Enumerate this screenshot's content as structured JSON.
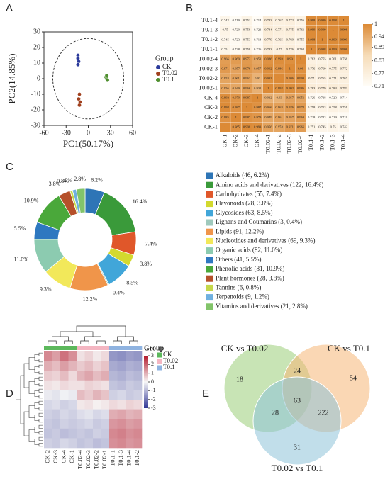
{
  "chart_data": [
    {
      "type": "scatter",
      "panel": "A",
      "xlabel": "PC1(50.17%)",
      "ylabel": "PC2(14.85%)",
      "xlim": [
        -60,
        60
      ],
      "ylim": [
        -30,
        30
      ],
      "xticks": [
        -60,
        -30,
        0,
        30,
        60
      ],
      "yticks": [
        -30,
        -20,
        -10,
        0,
        10,
        20,
        30
      ],
      "legend_title": "Group",
      "series": [
        {
          "name": "CK",
          "color": "#2b3a9b",
          "x": [
            -14,
            -14,
            -13,
            -14
          ],
          "y": [
            15,
            13,
            11,
            9
          ]
        },
        {
          "name": "T0.02",
          "color": "#a0401e",
          "x": [
            -12,
            -13,
            -11,
            -12
          ],
          "y": [
            -10,
            -13,
            -15,
            -17
          ]
        },
        {
          "name": "T0.1",
          "color": "#4f8f2f",
          "x": [
            24,
            25,
            26,
            25
          ],
          "y": [
            1,
            0,
            -1,
            2
          ]
        }
      ]
    },
    {
      "type": "heatmap",
      "panel": "B",
      "rows": [
        "T0.1-4",
        "T0.1-3",
        "T0.1-2",
        "T0.1-1",
        "T0.02-4",
        "T0.02-3",
        "T0.02-2",
        "T0.02-1",
        "CK-4",
        "CK-3",
        "CK-2",
        "CK-1"
      ],
      "columns": [
        "CK-1",
        "CK-2",
        "CK-3",
        "CK-4",
        "T0.02-1",
        "T0.02-2",
        "T0.02-3",
        "T0.02-4",
        "T0.1-1",
        "T0.1-2",
        "T0.1-3",
        "T0.1-4"
      ],
      "values": [
        [
          0.742,
          0.719,
          0.751,
          0.714,
          0.783,
          0.767,
          0.772,
          0.756,
          0.998,
          0.999,
          0.998,
          1
        ],
        [
          0.75,
          0.729,
          0.758,
          0.723,
          0.784,
          0.771,
          0.775,
          0.761,
          0.999,
          0.999,
          1,
          0.998
        ],
        [
          0.745,
          0.723,
          0.753,
          0.718,
          0.779,
          0.765,
          0.769,
          0.755,
          0.998,
          1,
          0.999,
          0.999
        ],
        [
          0.751,
          0.728,
          0.758,
          0.726,
          0.783,
          0.77,
          0.776,
          0.762,
          1,
          0.998,
          0.999,
          0.998
        ],
        [
          0.966,
          0.969,
          0.972,
          0.951,
          0.986,
          0.993,
          0.99,
          1,
          0.762,
          0.755,
          0.761,
          0.756
        ],
        [
          0.971,
          0.957,
          0.976,
          0.957,
          0.992,
          0.986,
          1,
          0.99,
          0.776,
          0.769,
          0.775,
          0.772
        ],
        [
          0.953,
          0.961,
          0.963,
          0.93,
          0.992,
          1,
          0.986,
          0.993,
          0.77,
          0.765,
          0.771,
          0.767
        ],
        [
          0.956,
          0.949,
          0.966,
          0.932,
          1,
          0.992,
          0.992,
          0.986,
          0.783,
          0.779,
          0.784,
          0.783
        ],
        [
          0.993,
          0.979,
          0.987,
          1,
          0.932,
          0.93,
          0.957,
          0.951,
          0.726,
          0.718,
          0.723,
          0.714
        ],
        [
          0.998,
          0.987,
          1,
          0.987,
          0.966,
          0.963,
          0.976,
          0.972,
          0.758,
          0.753,
          0.758,
          0.751
        ],
        [
          0.985,
          1,
          0.987,
          0.979,
          0.949,
          0.961,
          0.957,
          0.969,
          0.728,
          0.723,
          0.729,
          0.719
        ],
        [
          1,
          0.985,
          0.998,
          0.993,
          0.956,
          0.953,
          0.971,
          0.966,
          0.751,
          0.745,
          0.75,
          0.742
        ]
      ],
      "zlim": [
        0.71,
        1
      ],
      "zticks": [
        1,
        0.94,
        0.89,
        0.83,
        0.77,
        0.71
      ],
      "colors": [
        "#fffdf8",
        "#f6dcb8",
        "#dc8a36"
      ]
    },
    {
      "type": "pie",
      "panel": "C",
      "donut": true,
      "categories": [
        "Alkaloids (46, 6.2%)",
        "Amino acids and derivatives (122, 16.4%)",
        "Carbohydrates (55, 7.4%)",
        "Flavonoids (28, 3.8%)",
        "Glycosides (63, 8.5%)",
        "Lignans and Coumarins (3, 0.4%)",
        "Lipids (91, 12.2%)",
        "Nucleotides and derivatives (69, 9.3%)",
        "Organic acids (82, 11.0%)",
        "Others (41, 5.5%)",
        "Phenolic acids (81, 10.9%)",
        "Plant hormones (28, 3.8%)",
        "Tannins (6, 0.8%)",
        "Terpenoids (9, 1.2%)",
        "Vitamins and derivatives (21, 2.8%)"
      ],
      "values": [
        6.2,
        16.4,
        7.4,
        3.8,
        8.5,
        0.4,
        12.2,
        9.3,
        11,
        5.5,
        10.9,
        3.8,
        0.8,
        1.2,
        2.8
      ],
      "value_labels": [
        "6.2%",
        "16.4%",
        "7.4%",
        "3.8%",
        "8.5%",
        "0.4%",
        "12.2%",
        "9.3%",
        "11.0%",
        "5.5%",
        "10.9%",
        "3.8%",
        "0.8%",
        "1.2%",
        "2.8%"
      ],
      "colors": [
        "#2e75b6",
        "#3a9a3a",
        "#e0572a",
        "#d3d92e",
        "#41a6d9",
        "#9fc9bc",
        "#f0954a",
        "#f2e85a",
        "#8ccbb0",
        "#2e78c0",
        "#4aa83a",
        "#b5502a",
        "#c5d84a",
        "#6fb0e0",
        "#82c46a"
      ]
    },
    {
      "type": "heatmap",
      "panel": "D",
      "columns": [
        "CK-2",
        "CK-3",
        "CK-4",
        "CK-1",
        "T0.02-4",
        "T0.02-3",
        "T0.02-2",
        "T0.02-1",
        "T0.1-1",
        "T0.1-3",
        "T0.1-4",
        "T0.1-2"
      ],
      "values": [
        [
          1.5,
          1.2,
          1.8,
          1.4,
          0.3,
          0.5,
          0.2,
          0.4,
          -1.5,
          -1.6,
          -1.4,
          -1.5
        ],
        [
          1.0,
          0.8,
          1.2,
          0.9,
          0.6,
          0.8,
          0.5,
          0.7,
          -1.2,
          -1.3,
          -1.1,
          -1.2
        ],
        [
          0.6,
          0.5,
          0.8,
          0.4,
          0.9,
          1.1,
          0.8,
          1.0,
          -1.0,
          -1.1,
          -0.9,
          -1.0
        ],
        [
          0.3,
          0.2,
          0.4,
          0.3,
          0.3,
          0.5,
          0.4,
          0.3,
          -0.8,
          -0.9,
          -0.7,
          -0.8
        ],
        [
          -0.2,
          -0.3,
          -0.1,
          -0.2,
          0.8,
          0.6,
          0.9,
          0.7,
          -0.6,
          -0.5,
          -0.7,
          -0.6
        ],
        [
          -0.5,
          -0.4,
          -0.6,
          -0.5,
          0.2,
          0.3,
          0.1,
          0.2,
          0.4,
          0.3,
          0.5,
          0.4
        ],
        [
          -0.6,
          -0.7,
          -0.5,
          -0.6,
          -0.4,
          -0.3,
          -0.5,
          -0.4,
          1.0,
          1.1,
          0.9,
          1.0
        ],
        [
          -0.7,
          -0.8,
          -0.6,
          -0.7,
          -0.6,
          -0.5,
          -0.7,
          -0.6,
          1.3,
          1.4,
          1.2,
          1.3
        ],
        [
          -0.8,
          -0.7,
          -0.9,
          -0.8,
          -0.7,
          -0.8,
          -0.6,
          -0.7,
          1.5,
          1.6,
          1.4,
          1.5
        ],
        [
          -0.6,
          -0.7,
          -0.5,
          -0.6,
          -0.8,
          -0.7,
          -0.9,
          -0.8,
          1.4,
          1.5,
          1.3,
          1.4
        ]
      ],
      "zlim": [
        -3,
        3
      ],
      "zticks": [
        3,
        2,
        1,
        0,
        -1,
        -2,
        -3
      ],
      "colors": [
        "#313695",
        "#f7f7f7",
        "#b2182b"
      ],
      "legend_title": "Group",
      "groups": [
        {
          "name": "CK",
          "color": "#5cb85c"
        },
        {
          "name": "T0.02",
          "color": "#f4b6c2"
        },
        {
          "name": "T0.1",
          "color": "#8fb3e0"
        }
      ],
      "column_groups": [
        0,
        0,
        0,
        0,
        1,
        1,
        1,
        1,
        2,
        2,
        2,
        2
      ]
    },
    {
      "type": "venn",
      "panel": "E",
      "sets": [
        {
          "name": "CK vs T0.02",
          "color": "#9acd78"
        },
        {
          "name": "CK vs T0.1",
          "color": "#f5b777"
        },
        {
          "name": "T0.02 vs T0.1",
          "color": "#8ec3d9"
        }
      ],
      "values": [
        18,
        54,
        31,
        24,
        28,
        222,
        63
      ]
    }
  ]
}
